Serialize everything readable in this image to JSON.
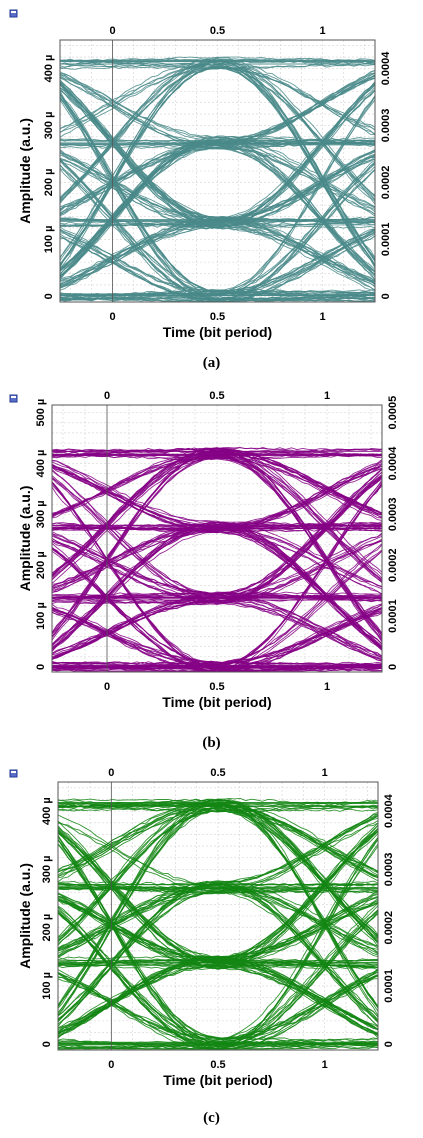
{
  "chart_data": [
    {
      "type": "line",
      "chart_kind": "eye-diagram",
      "caption": "(a)",
      "xlabel": "Time (bit period)",
      "ylabel": "Amplitude (a.u.)",
      "xlim": [
        -0.25,
        1.25
      ],
      "ylim": [
        -10,
        450
      ],
      "right_ylim": [
        -1e-05,
        0.00045
      ],
      "x_ticks": [
        "0",
        "0.5",
        "1"
      ],
      "x_tick_values": [
        0,
        0.5,
        1
      ],
      "y_ticks": [
        "0",
        "100 µ",
        "200 µ",
        "300 µ",
        "400 µ"
      ],
      "y_tick_values": [
        0,
        100,
        200,
        300,
        400
      ],
      "right_ticks": [
        "0",
        "0.0001",
        "0.0002",
        "0.0003",
        "0.0004"
      ],
      "right_tick_values": [
        0,
        0.0001,
        0.0002,
        0.0003,
        0.0004
      ],
      "levels": [
        0,
        130,
        270,
        410
      ],
      "max_level": 410,
      "color": "#4a8a8a",
      "grid": true
    },
    {
      "type": "line",
      "chart_kind": "eye-diagram",
      "caption": "(b)",
      "xlabel": "Time (bit period)",
      "ylabel": "Amplitude (a.u.)",
      "xlim": [
        -0.25,
        1.25
      ],
      "ylim": [
        -10,
        515
      ],
      "right_ylim": [
        -1e-05,
        0.000515
      ],
      "x_ticks": [
        "0",
        "0.5",
        "1"
      ],
      "x_tick_values": [
        0,
        0.5,
        1
      ],
      "y_ticks": [
        "0",
        "100 µ",
        "200 µ",
        "300 µ",
        "400 µ",
        "500 µ"
      ],
      "y_tick_values": [
        0,
        100,
        200,
        300,
        400,
        500
      ],
      "right_ticks": [
        "0",
        "0.0001",
        "0.0002",
        "0.0003",
        "0.0004",
        "0.0005"
      ],
      "right_tick_values": [
        0,
        0.0001,
        0.0002,
        0.0003,
        0.0004,
        0.0005
      ],
      "levels": [
        0,
        135,
        275,
        420
      ],
      "max_level": 480,
      "color": "#850085",
      "grid": true
    },
    {
      "type": "line",
      "chart_kind": "eye-diagram",
      "caption": "(c)",
      "xlabel": "Time (bit period)",
      "ylabel": "Amplitude (a.u.)",
      "xlim": [
        -0.25,
        1.25
      ],
      "ylim": [
        -10,
        450
      ],
      "right_ylim": [
        -1e-05,
        0.00045
      ],
      "x_ticks": [
        "0",
        "0.5",
        "1"
      ],
      "x_tick_values": [
        0,
        0.5,
        1
      ],
      "y_ticks": [
        "0",
        "100 µ",
        "200 µ",
        "300 µ",
        "400 µ"
      ],
      "y_tick_values": [
        0,
        100,
        200,
        300,
        400
      ],
      "right_ticks": [
        "0",
        "0.0001",
        "0.0002",
        "0.0003",
        "0.0004"
      ],
      "right_tick_values": [
        0,
        0.0001,
        0.0002,
        0.0003,
        0.0004
      ],
      "levels": [
        0,
        140,
        270,
        410
      ],
      "max_level": 430,
      "color": "#138613",
      "grid": true
    }
  ]
}
